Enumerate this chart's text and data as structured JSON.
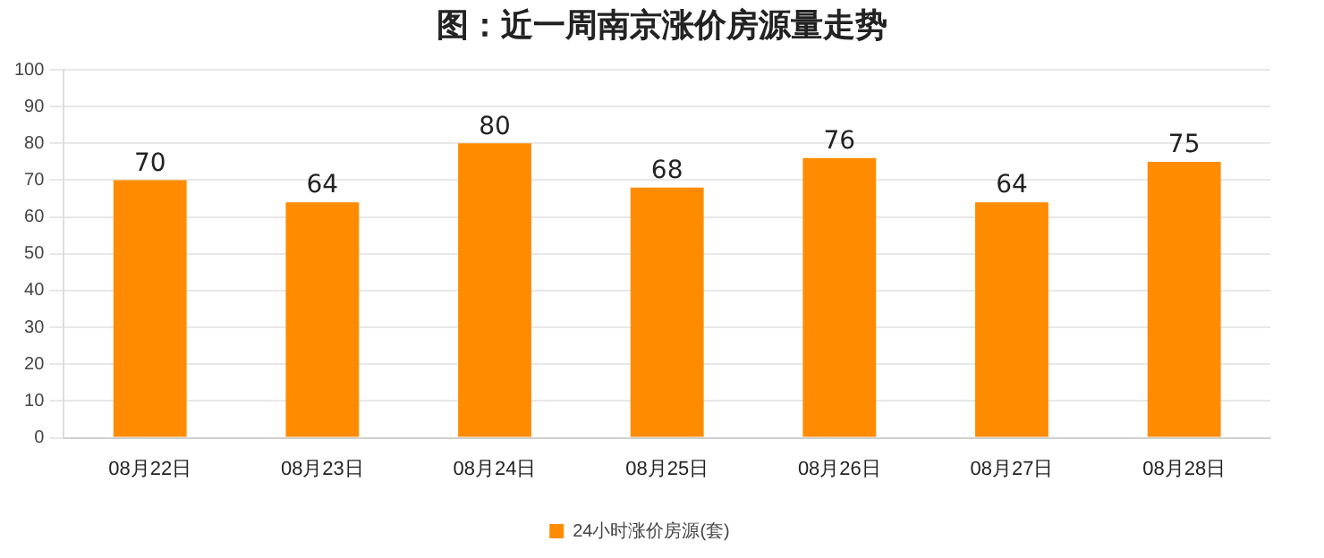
{
  "chart_data": {
    "type": "bar",
    "title": "图：近一周南京涨价房源量走势",
    "categories": [
      "08月22日",
      "08月23日",
      "08月24日",
      "08月25日",
      "08月26日",
      "08月27日",
      "08月28日"
    ],
    "series": [
      {
        "name": "24小时涨价房源(套)",
        "color": "#ff8c00",
        "values": [
          70,
          64,
          80,
          68,
          76,
          64,
          75
        ]
      }
    ],
    "ylim": [
      0,
      100
    ],
    "yticks": [
      0,
      10,
      20,
      30,
      40,
      50,
      60,
      70,
      80,
      90,
      100
    ],
    "grid": "y",
    "legend": "bottom",
    "data_labels": true
  }
}
